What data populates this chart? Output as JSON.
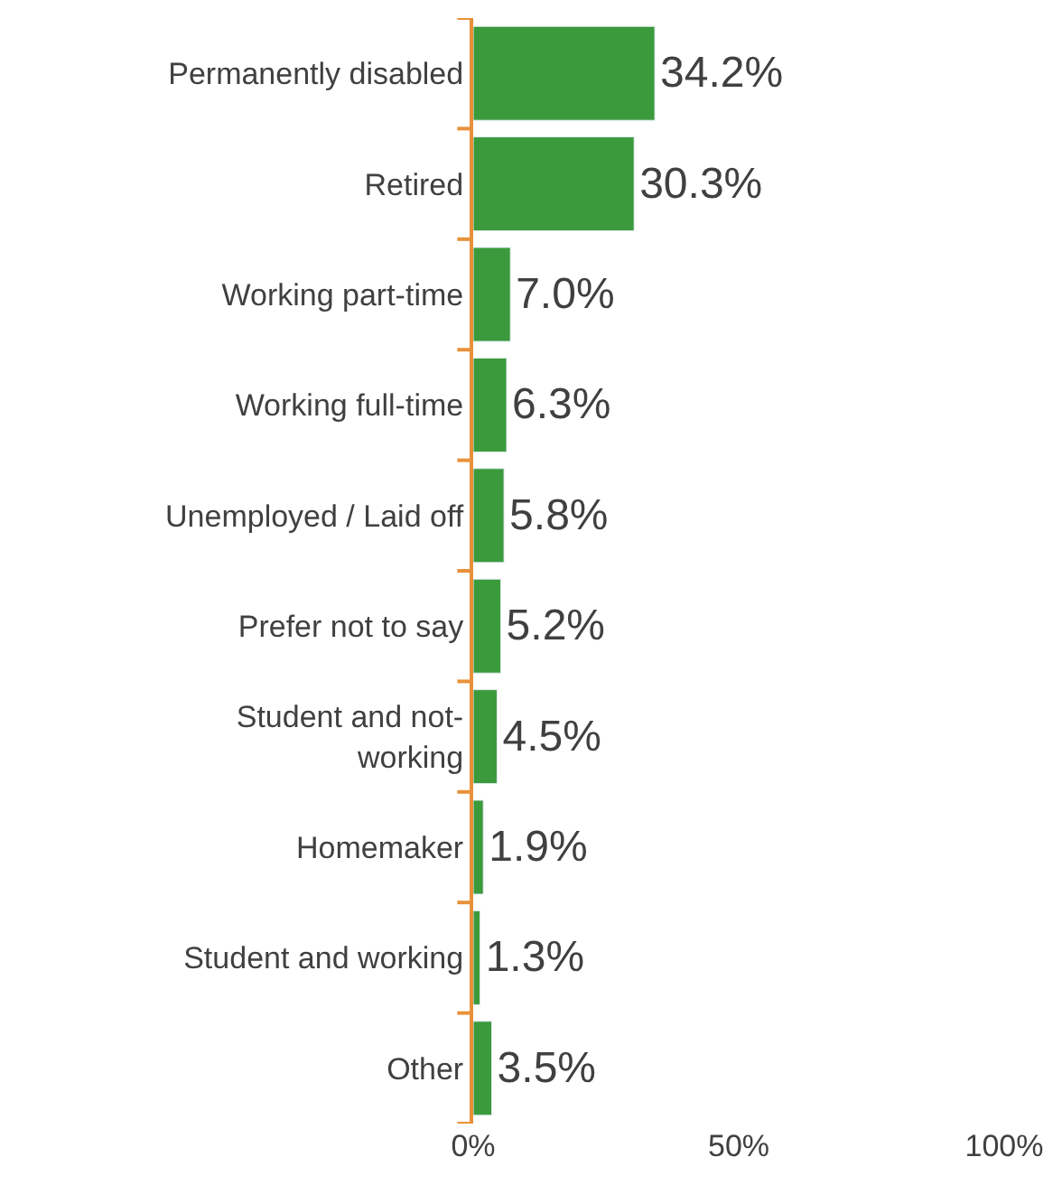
{
  "chart_data": {
    "type": "bar",
    "orientation": "horizontal",
    "categories": [
      "Permanently disabled",
      "Retired",
      "Working part-time",
      "Working full-time",
      "Unemployed / Laid off",
      "Prefer not to say",
      "Student and not-working",
      "Homemaker",
      "Student and working",
      "Other"
    ],
    "values": [
      34.2,
      30.3,
      7.0,
      6.3,
      5.8,
      5.2,
      4.5,
      1.9,
      1.3,
      3.5
    ],
    "value_labels": [
      "34.2%",
      "30.3%",
      "7.0%",
      "6.3%",
      "5.8%",
      "5.2%",
      "4.5%",
      "1.9%",
      "1.3%",
      "3.5%"
    ],
    "color": "#3b9a3b",
    "xlim": [
      0,
      100
    ],
    "xticks": [
      {
        "value": 0,
        "label": "0%"
      },
      {
        "value": 50,
        "label": "50%"
      },
      {
        "value": 100,
        "label": "100%"
      }
    ]
  }
}
